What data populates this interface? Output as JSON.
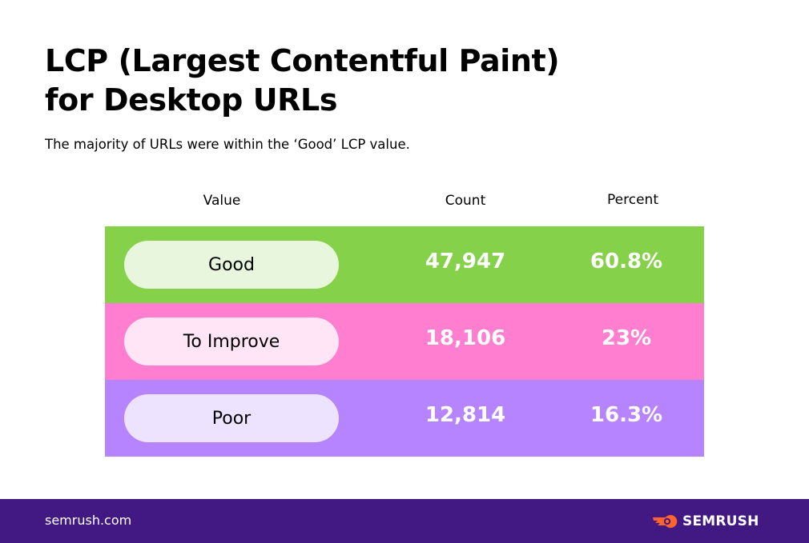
{
  "title_line1": "LCP (Largest Contentful Paint)",
  "title_line2": "for Desktop URLs",
  "subtitle": "The majority of URLs were within the ‘Good’ LCP value.",
  "headers": {
    "value": "Value",
    "count": "Count",
    "percent": "Percent"
  },
  "footer": {
    "url": "semrush.com",
    "brand": "SEMRUSH",
    "brand_color": "#FF642D",
    "background": "#421983"
  },
  "chart_data": {
    "type": "table",
    "title": "LCP (Largest Contentful Paint) for Desktop URLs",
    "columns": [
      "Value",
      "Count",
      "Percent"
    ],
    "rows": [
      {
        "label": "Good",
        "count": "47,947",
        "percent": "60.8%",
        "color": "#86D14A",
        "pill_color": "#E7F6DC"
      },
      {
        "label": "To Improve",
        "count": "18,106",
        "percent": "23%",
        "color": "#FF7ECF",
        "pill_color": "#FFE5F5"
      },
      {
        "label": "Poor",
        "count": "12,814",
        "percent": "16.3%",
        "color": "#B784FF",
        "pill_color": "#EEE3FF"
      }
    ],
    "values": [
      47947,
      18106,
      12814
    ],
    "percents": [
      60.8,
      23,
      16.3
    ]
  }
}
